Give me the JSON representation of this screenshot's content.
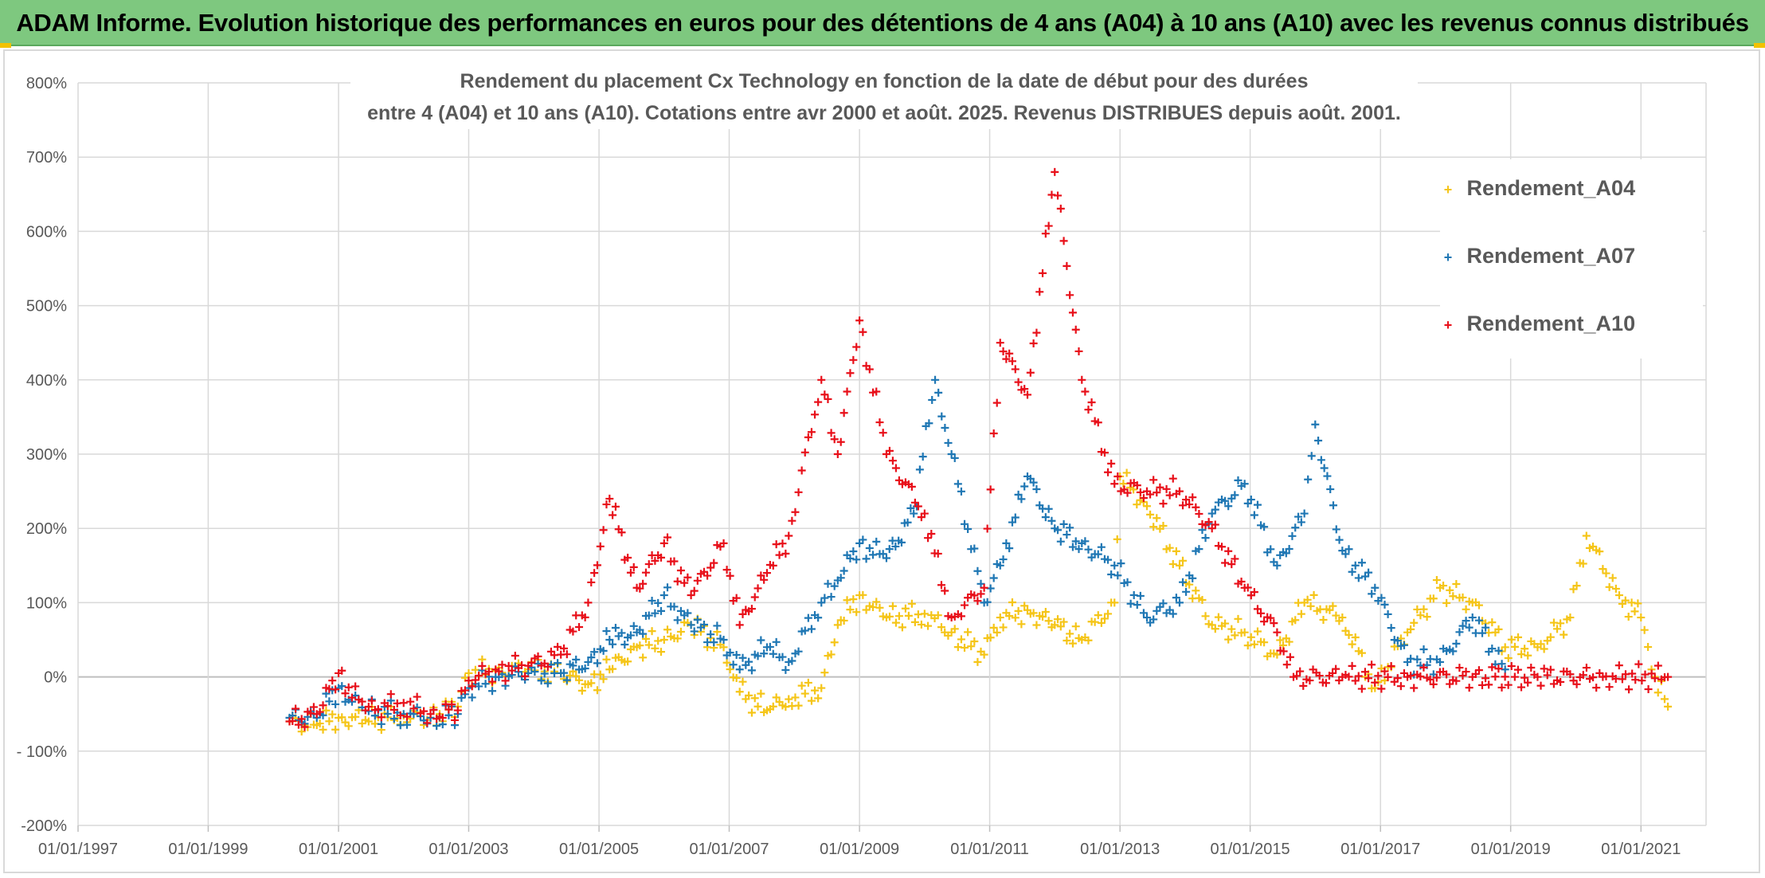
{
  "banner": {
    "title": "ADAM Informe. Evolution historique des performances en euros pour des détentions de 4 ans (A04) à 10 ans (A10) avec les revenus connus distribués",
    "background": "#7ec87f"
  },
  "chart_data": {
    "type": "scatter",
    "title_line1": "Rendement du placement Cx Technology  en fonction de la date de début pour des durées",
    "title_line2": "entre 4 (A04) et 10 ans (A10). Cotations entre avr 2000 et août. 2025. Revenus DISTRIBUES depuis août. 2001.",
    "xlabel": "",
    "ylabel": "",
    "x_range": [
      "1997-01-01",
      "2022-01-01"
    ],
    "ylim": [
      -200,
      800
    ],
    "y_ticks": [
      -200,
      -100,
      0,
      100,
      200,
      300,
      400,
      500,
      600,
      700,
      800
    ],
    "y_tick_labels": [
      "-200%",
      "- 100%",
      "0%",
      "100%",
      "200%",
      "300%",
      "400%",
      "500%",
      "600%",
      "700%",
      "800%"
    ],
    "x_ticks": [
      "1997-01-01",
      "1999-01-01",
      "2001-01-01",
      "2003-01-01",
      "2005-01-01",
      "2007-01-01",
      "2009-01-01",
      "2011-01-01",
      "2013-01-01",
      "2015-01-01",
      "2017-01-01",
      "2019-01-01",
      "2021-01-01"
    ],
    "x_tick_labels": [
      "01/01/1997",
      "01/01/1999",
      "01/01/2001",
      "01/01/2003",
      "01/01/2005",
      "01/01/2007",
      "01/01/2009",
      "01/01/2011",
      "01/01/2013",
      "01/01/2015",
      "01/01/2017",
      "01/01/2019",
      "01/01/2021"
    ],
    "grid": true,
    "legend_position": "top-right",
    "marker": "+",
    "series": [
      {
        "name": "Rendement_A04",
        "color": "#f5c518",
        "points": [
          [
            "2000-04-01",
            -60
          ],
          [
            "2000-09-01",
            -65
          ],
          [
            "2001-01-01",
            -55
          ],
          [
            "2001-06-01",
            -58
          ],
          [
            "2002-01-01",
            -52
          ],
          [
            "2002-06-01",
            -55
          ],
          [
            "2002-11-01",
            -40
          ],
          [
            "2003-01-01",
            5
          ],
          [
            "2003-06-01",
            8
          ],
          [
            "2003-12-01",
            10
          ],
          [
            "2004-06-01",
            5
          ],
          [
            "2004-11-01",
            -10
          ],
          [
            "2005-03-01",
            10
          ],
          [
            "2005-08-01",
            40
          ],
          [
            "2006-01-01",
            50
          ],
          [
            "2006-06-01",
            70
          ],
          [
            "2006-12-01",
            40
          ],
          [
            "2007-03-01",
            -20
          ],
          [
            "2007-08-01",
            -45
          ],
          [
            "2007-12-01",
            -30
          ],
          [
            "2008-06-01",
            -15
          ],
          [
            "2008-09-01",
            70
          ],
          [
            "2009-01-01",
            110
          ],
          [
            "2009-06-01",
            80
          ],
          [
            "2010-01-01",
            85
          ],
          [
            "2010-06-01",
            60
          ],
          [
            "2010-12-01",
            30
          ],
          [
            "2011-03-01",
            80
          ],
          [
            "2011-08-01",
            90
          ],
          [
            "2012-01-01",
            70
          ],
          [
            "2012-06-01",
            50
          ],
          [
            "2012-12-01",
            100
          ],
          [
            "2013-01-01",
            270
          ],
          [
            "2013-06-01",
            230
          ],
          [
            "2013-12-01",
            150
          ],
          [
            "2014-06-01",
            70
          ],
          [
            "2014-12-01",
            60
          ],
          [
            "2015-06-01",
            30
          ],
          [
            "2015-11-01",
            100
          ],
          [
            "2016-06-01",
            80
          ],
          [
            "2016-12-01",
            -15
          ],
          [
            "2017-06-01",
            60
          ],
          [
            "2017-12-01",
            120
          ],
          [
            "2018-06-01",
            100
          ],
          [
            "2018-12-01",
            40
          ],
          [
            "2019-06-01",
            40
          ],
          [
            "2019-12-01",
            80
          ],
          [
            "2020-03-01",
            190
          ],
          [
            "2020-09-01",
            110
          ],
          [
            "2021-01-01",
            80
          ],
          [
            "2021-03-01",
            10
          ],
          [
            "2021-06-01",
            -40
          ]
        ]
      },
      {
        "name": "Rendement_A07",
        "color": "#1f77b4",
        "points": [
          [
            "2000-04-01",
            -55
          ],
          [
            "2000-09-01",
            -55
          ],
          [
            "2001-01-01",
            -15
          ],
          [
            "2001-06-01",
            -45
          ],
          [
            "2002-01-01",
            -50
          ],
          [
            "2002-06-01",
            -55
          ],
          [
            "2002-11-01",
            -50
          ],
          [
            "2003-01-01",
            -15
          ],
          [
            "2003-06-01",
            0
          ],
          [
            "2003-12-01",
            5
          ],
          [
            "2004-06-01",
            5
          ],
          [
            "2004-11-01",
            20
          ],
          [
            "2005-03-01",
            50
          ],
          [
            "2005-08-01",
            60
          ],
          [
            "2006-01-01",
            110
          ],
          [
            "2006-06-01",
            70
          ],
          [
            "2006-12-01",
            50
          ],
          [
            "2007-03-01",
            10
          ],
          [
            "2007-08-01",
            40
          ],
          [
            "2007-12-01",
            20
          ],
          [
            "2008-06-01",
            100
          ],
          [
            "2008-09-01",
            130
          ],
          [
            "2009-01-01",
            180
          ],
          [
            "2009-06-01",
            160
          ],
          [
            "2009-11-01",
            220
          ],
          [
            "2010-03-01",
            400
          ],
          [
            "2010-06-01",
            300
          ],
          [
            "2010-12-01",
            100
          ],
          [
            "2011-03-01",
            150
          ],
          [
            "2011-08-01",
            270
          ],
          [
            "2012-01-01",
            200
          ],
          [
            "2012-06-01",
            180
          ],
          [
            "2012-12-01",
            150
          ],
          [
            "2013-06-01",
            80
          ],
          [
            "2013-12-01",
            100
          ],
          [
            "2014-06-01",
            220
          ],
          [
            "2014-12-01",
            260
          ],
          [
            "2015-06-01",
            150
          ],
          [
            "2015-11-01",
            220
          ],
          [
            "2016-01-01",
            340
          ],
          [
            "2016-06-01",
            170
          ],
          [
            "2016-12-01",
            120
          ],
          [
            "2017-06-01",
            20
          ],
          [
            "2017-12-01",
            20
          ],
          [
            "2018-06-01",
            80
          ],
          [
            "2018-12-01",
            10
          ]
        ]
      },
      {
        "name": "Rendement_A10",
        "color": "#e8101a",
        "points": [
          [
            "2000-04-01",
            -60
          ],
          [
            "2000-09-01",
            -50
          ],
          [
            "2001-01-01",
            5
          ],
          [
            "2001-06-01",
            -45
          ],
          [
            "2002-01-01",
            -35
          ],
          [
            "2002-06-01",
            -50
          ],
          [
            "2002-11-01",
            -45
          ],
          [
            "2003-01-01",
            -5
          ],
          [
            "2003-06-01",
            10
          ],
          [
            "2003-12-01",
            15
          ],
          [
            "2004-06-01",
            30
          ],
          [
            "2004-11-01",
            100
          ],
          [
            "2005-03-01",
            240
          ],
          [
            "2005-08-01",
            120
          ],
          [
            "2006-01-01",
            180
          ],
          [
            "2006-06-01",
            110
          ],
          [
            "2006-12-01",
            180
          ],
          [
            "2007-03-01",
            70
          ],
          [
            "2007-08-01",
            140
          ],
          [
            "2007-12-01",
            190
          ],
          [
            "2008-06-01",
            400
          ],
          [
            "2008-09-01",
            300
          ],
          [
            "2009-01-01",
            480
          ],
          [
            "2009-06-01",
            300
          ],
          [
            "2010-01-01",
            220
          ],
          [
            "2010-06-01",
            80
          ],
          [
            "2010-12-01",
            120
          ],
          [
            "2011-03-01",
            450
          ],
          [
            "2011-08-01",
            380
          ],
          [
            "2012-01-01",
            680
          ],
          [
            "2012-06-01",
            400
          ],
          [
            "2012-12-01",
            260
          ],
          [
            "2013-06-01",
            250
          ],
          [
            "2013-12-01",
            250
          ],
          [
            "2014-06-01",
            200
          ],
          [
            "2014-12-01",
            120
          ],
          [
            "2015-06-01",
            60
          ],
          [
            "2015-09-01",
            0
          ],
          [
            "2016-06-01",
            0
          ],
          [
            "2017-06-01",
            0
          ],
          [
            "2018-06-01",
            0
          ],
          [
            "2019-06-01",
            0
          ],
          [
            "2020-06-01",
            0
          ],
          [
            "2021-06-01",
            0
          ]
        ]
      }
    ]
  },
  "legend": {
    "items": [
      {
        "label": "Rendement_A04",
        "color": "#f5c518"
      },
      {
        "label": "Rendement_A07",
        "color": "#1f77b4"
      },
      {
        "label": "Rendement_A10",
        "color": "#e8101a"
      }
    ],
    "marker": "+"
  }
}
